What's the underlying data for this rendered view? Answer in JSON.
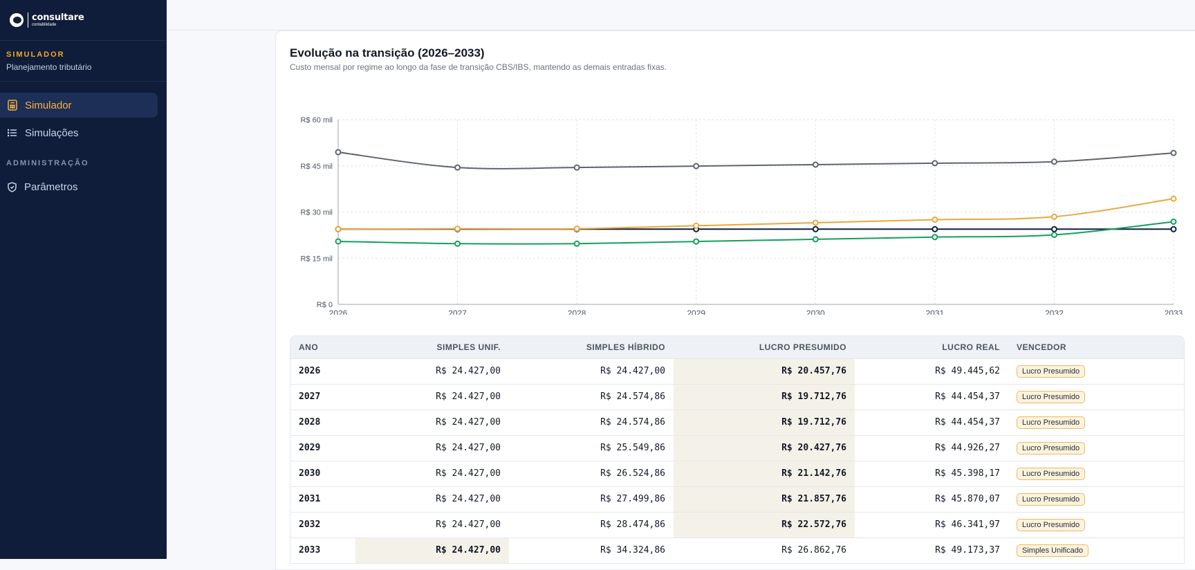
{
  "brand": {
    "name": "consultare",
    "sub": "contabilidade"
  },
  "sidebar": {
    "kicker": "SIMULADOR",
    "subtitle": "Planejamento tributário",
    "items": [
      {
        "label": "Simulador",
        "icon": "calculator-icon",
        "active": true
      },
      {
        "label": "Simulações",
        "icon": "list-icon",
        "active": false
      }
    ],
    "admin_group": "ADMINISTRAÇÃO",
    "admin_items": [
      {
        "label": "Parâmetros",
        "icon": "shield-icon"
      }
    ]
  },
  "card": {
    "title": "Evolução na transição (2026–2033)",
    "subtitle": "Custo mensal por regime ao longo da fase de transição CBS/IBS, mantendo as demais entradas fixas."
  },
  "chart_data": {
    "type": "line",
    "x": [
      "2026",
      "2027",
      "2028",
      "2029",
      "2030",
      "2031",
      "2032",
      "2033"
    ],
    "yticks": [
      "R$ 0",
      "R$ 15 mil",
      "R$ 30 mil",
      "R$ 45 mil",
      "R$ 60 mil"
    ],
    "ylim": [
      0,
      60000
    ],
    "grid": true,
    "legend": "bottom",
    "series": [
      {
        "name": "Simples Unificado",
        "color": "#0f1d3a",
        "values": [
          24427,
          24427,
          24427,
          24427,
          24427,
          24427,
          24427,
          24427
        ]
      },
      {
        "name": "Simples Híbrido",
        "color": "#e8a83c",
        "values": [
          24427,
          24574.86,
          24574.86,
          25549.86,
          26524.86,
          27499.86,
          28474.86,
          34324.86
        ]
      },
      {
        "name": "Lucro Presumido",
        "color": "#12a05a",
        "values": [
          20457.76,
          19712.76,
          19712.76,
          20427.76,
          21142.76,
          21857.76,
          22572.76,
          26862.76
        ]
      },
      {
        "name": "Lucro Real",
        "color": "#5e6470",
        "values": [
          49445.62,
          44454.37,
          44454.37,
          44926.27,
          45398.17,
          45870.07,
          46341.97,
          49173.37
        ]
      }
    ]
  },
  "table": {
    "headers": [
      "ANO",
      "SIMPLES UNIF.",
      "SIMPLES HÍBRIDO",
      "LUCRO PRESUMIDO",
      "LUCRO REAL",
      "VENCEDOR"
    ],
    "rows": [
      {
        "ano": "2026",
        "su": "R$ 24.427,00",
        "sh": "R$ 24.427,00",
        "lp": "R$ 20.457,76",
        "lr": "R$ 49.445,62",
        "winner": "Lucro Presumido",
        "win_col": 3
      },
      {
        "ano": "2027",
        "su": "R$ 24.427,00",
        "sh": "R$ 24.574,86",
        "lp": "R$ 19.712,76",
        "lr": "R$ 44.454,37",
        "winner": "Lucro Presumido",
        "win_col": 3
      },
      {
        "ano": "2028",
        "su": "R$ 24.427,00",
        "sh": "R$ 24.574,86",
        "lp": "R$ 19.712,76",
        "lr": "R$ 44.454,37",
        "winner": "Lucro Presumido",
        "win_col": 3
      },
      {
        "ano": "2029",
        "su": "R$ 24.427,00",
        "sh": "R$ 25.549,86",
        "lp": "R$ 20.427,76",
        "lr": "R$ 44.926,27",
        "winner": "Lucro Presumido",
        "win_col": 3
      },
      {
        "ano": "2030",
        "su": "R$ 24.427,00",
        "sh": "R$ 26.524,86",
        "lp": "R$ 21.142,76",
        "lr": "R$ 45.398,17",
        "winner": "Lucro Presumido",
        "win_col": 3
      },
      {
        "ano": "2031",
        "su": "R$ 24.427,00",
        "sh": "R$ 27.499,86",
        "lp": "R$ 21.857,76",
        "lr": "R$ 45.870,07",
        "winner": "Lucro Presumido",
        "win_col": 3
      },
      {
        "ano": "2032",
        "su": "R$ 24.427,00",
        "sh": "R$ 28.474,86",
        "lp": "R$ 22.572,76",
        "lr": "R$ 46.341,97",
        "winner": "Lucro Presumido",
        "win_col": 3
      },
      {
        "ano": "2033",
        "su": "R$ 24.427,00",
        "sh": "R$ 34.324,86",
        "lp": "R$ 26.862,76",
        "lr": "R$ 49.173,37",
        "winner": "Simples Unificado",
        "win_col": 1
      }
    ]
  }
}
